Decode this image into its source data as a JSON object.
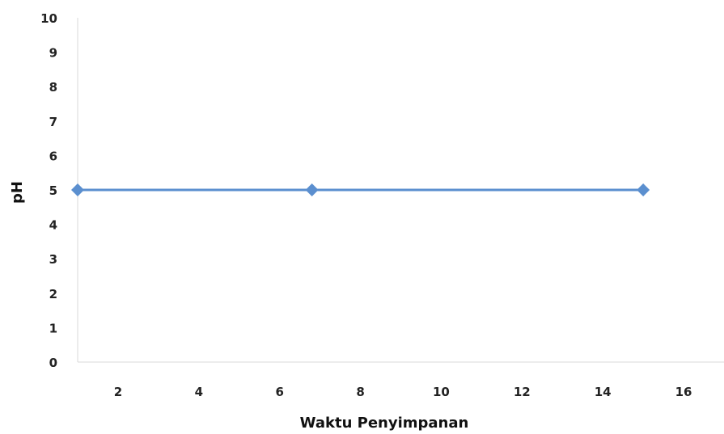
{
  "chart_data": {
    "type": "line",
    "xlabel": "Waktu Penyimpanan",
    "ylabel": "pH",
    "xlim": [
      1,
      17
    ],
    "ylim": [
      0,
      10
    ],
    "x_ticks": [
      2,
      4,
      6,
      8,
      10,
      12,
      14,
      16
    ],
    "y_ticks": [
      0,
      1,
      2,
      3,
      4,
      5,
      6,
      7,
      8,
      9,
      10
    ],
    "grid": false,
    "legend": "none",
    "series": [
      {
        "x": [
          1,
          6.8,
          15
        ],
        "y": [
          5,
          5,
          5
        ],
        "color": "#5b8fcf",
        "marker": "diamond"
      }
    ]
  }
}
